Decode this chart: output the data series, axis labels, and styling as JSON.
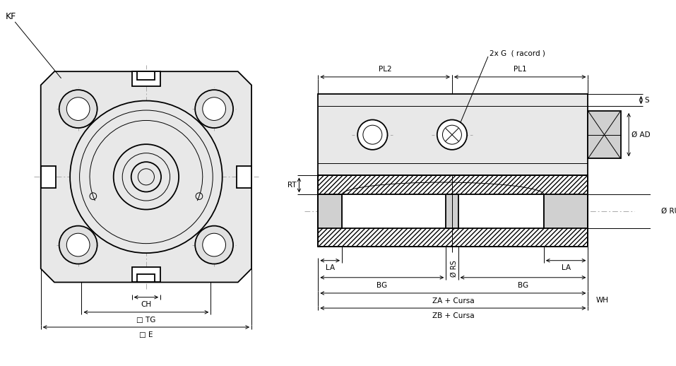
{
  "bg_color": "#ffffff",
  "line_color": "#000000",
  "clc": "#aaaaaa",
  "thin_line": 0.7,
  "medium_line": 1.3,
  "thick_line": 2.0,
  "fig_width": 9.57,
  "fig_height": 5.18,
  "labels": {
    "KF": "KF",
    "S": "S",
    "RT": "RT",
    "CH": "CH",
    "TG": "□ TG",
    "E": "□ E",
    "PL1": "PL1",
    "PL2": "PL2",
    "racord": "2x G  ( racord )",
    "AD": "Ø AD",
    "RU": "Ø RU",
    "RS": "Ø RS",
    "LA": "LA",
    "BG": "BG",
    "ZA": "ZA + Cursa",
    "ZB": "ZB + Cursa",
    "WH": "WH"
  }
}
